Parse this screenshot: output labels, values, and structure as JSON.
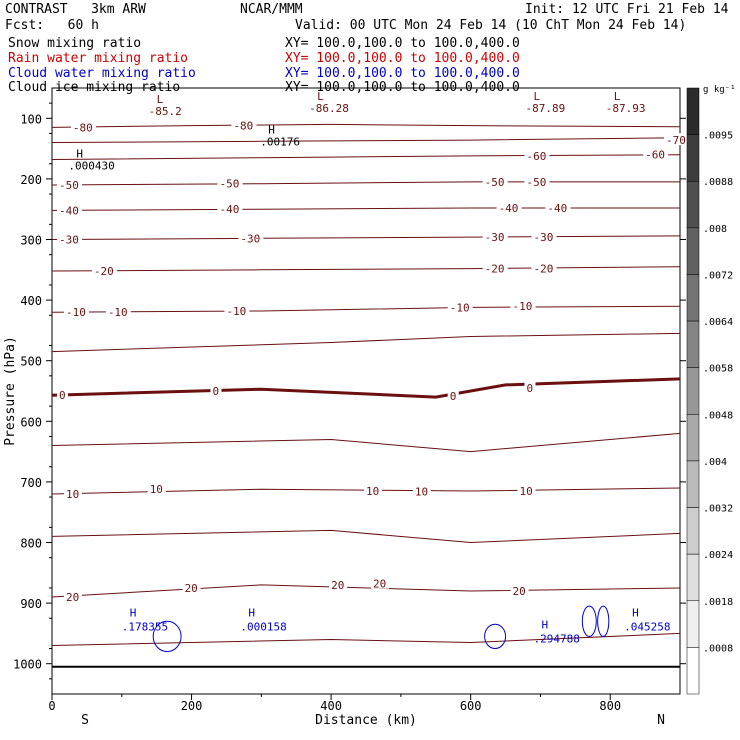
{
  "header": {
    "model": "CONTRAST   3km ARW",
    "org": "NCAR/MMM",
    "init": "Init: 12 UTC Fri 21 Feb 14",
    "fcst": "Fcst:   60 h",
    "valid": "Valid: 00 UTC Mon 24 Feb 14 (10 ChT Mon 24 Feb 14)"
  },
  "fields": [
    {
      "name": "Snow mixing ratio",
      "xy": "XY= 100.0,100.0 to 100.0,400.0",
      "color": "#000000"
    },
    {
      "name": "Rain water mixing ratio",
      "xy": "XY= 100.0,100.0 to 100.0,400.0",
      "color": "#d00000"
    },
    {
      "name": "Cloud water mixing ratio",
      "xy": "XY= 100.0,100.0 to 100.0,400.0",
      "color": "#0000cc"
    },
    {
      "name": "Cloud ice mixing ratio",
      "xy": "XY= 100.0,100.0 to 100.0,400.0",
      "color": "#000000"
    }
  ],
  "colors": {
    "isotherm": "#6b0f0f",
    "cloud": "#0000cc",
    "ground": "#000000"
  },
  "chart_data": {
    "type": "line",
    "xlabel": "Distance (km)",
    "ylabel": "Pressure (hPa)",
    "xlim": [
      0,
      900
    ],
    "ylim": [
      1050,
      50
    ],
    "xticks": [
      "0",
      "200",
      "400",
      "600",
      "800"
    ],
    "yticks": [
      "100",
      "200",
      "300",
      "400",
      "500",
      "600",
      "700",
      "800",
      "900",
      "1000"
    ],
    "x_endpoints": {
      "left": "S",
      "right": "N"
    },
    "isotherms": [
      {
        "t": -80,
        "p": [
          [
            0,
            115
          ],
          [
            200,
            112
          ],
          [
            400,
            110
          ],
          [
            600,
            112
          ],
          [
            900,
            114
          ]
        ]
      },
      {
        "t": -70,
        "p": [
          [
            0,
            140
          ],
          [
            300,
            138
          ],
          [
            600,
            136
          ],
          [
            900,
            132
          ]
        ]
      },
      {
        "t": -60,
        "p": [
          [
            0,
            168
          ],
          [
            300,
            165
          ],
          [
            600,
            162
          ],
          [
            900,
            160
          ]
        ]
      },
      {
        "t": -50,
        "p": [
          [
            0,
            210
          ],
          [
            300,
            208
          ],
          [
            600,
            205
          ],
          [
            900,
            205
          ]
        ]
      },
      {
        "t": -40,
        "p": [
          [
            0,
            252
          ],
          [
            300,
            250
          ],
          [
            600,
            248
          ],
          [
            900,
            248
          ]
        ]
      },
      {
        "t": -30,
        "p": [
          [
            0,
            300
          ],
          [
            300,
            298
          ],
          [
            600,
            296
          ],
          [
            900,
            294
          ]
        ]
      },
      {
        "t": -20,
        "p": [
          [
            0,
            352
          ],
          [
            300,
            350
          ],
          [
            600,
            348
          ],
          [
            900,
            345
          ]
        ]
      },
      {
        "t": -10,
        "p": [
          [
            0,
            420
          ],
          [
            300,
            418
          ],
          [
            600,
            412
          ],
          [
            900,
            410
          ]
        ]
      },
      {
        "t": 0,
        "p": [
          [
            0,
            557
          ],
          [
            300,
            547
          ],
          [
            550,
            560
          ],
          [
            650,
            540
          ],
          [
            900,
            530
          ]
        ]
      },
      {
        "t": 10,
        "p": [
          [
            0,
            720
          ],
          [
            300,
            712
          ],
          [
            600,
            715
          ],
          [
            900,
            710
          ]
        ]
      },
      {
        "t": 20,
        "p": [
          [
            0,
            890
          ],
          [
            300,
            870
          ],
          [
            600,
            880
          ],
          [
            900,
            875
          ]
        ]
      }
    ],
    "extra_contours": [
      {
        "p": [
          [
            0,
            485
          ],
          [
            400,
            470
          ],
          [
            600,
            460
          ],
          [
            900,
            455
          ]
        ]
      },
      {
        "p": [
          [
            0,
            640
          ],
          [
            400,
            630
          ],
          [
            600,
            650
          ],
          [
            900,
            620
          ]
        ]
      },
      {
        "p": [
          [
            0,
            790
          ],
          [
            400,
            780
          ],
          [
            600,
            800
          ],
          [
            900,
            785
          ]
        ]
      },
      {
        "p": [
          [
            0,
            970
          ],
          [
            400,
            960
          ],
          [
            600,
            965
          ],
          [
            900,
            950
          ]
        ]
      }
    ],
    "isotherm_labels": [
      {
        "text": "-80",
        "x": 30,
        "p": 115
      },
      {
        "text": "-80",
        "x": 260,
        "p": 112
      },
      {
        "text": "-70",
        "x": 880,
        "p": 136
      },
      {
        "text": "-60",
        "x": 680,
        "p": 162
      },
      {
        "text": "-60",
        "x": 850,
        "p": 160
      },
      {
        "text": "-50",
        "x": 10,
        "p": 210
      },
      {
        "text": "-50",
        "x": 240,
        "p": 208
      },
      {
        "text": "-50",
        "x": 620,
        "p": 205
      },
      {
        "text": "-50",
        "x": 680,
        "p": 205
      },
      {
        "text": "-40",
        "x": 10,
        "p": 252
      },
      {
        "text": "-40",
        "x": 240,
        "p": 250
      },
      {
        "text": "-40",
        "x": 640,
        "p": 248
      },
      {
        "text": "-40",
        "x": 710,
        "p": 248
      },
      {
        "text": "-30",
        "x": 10,
        "p": 300
      },
      {
        "text": "-30",
        "x": 270,
        "p": 298
      },
      {
        "text": "-30",
        "x": 620,
        "p": 296
      },
      {
        "text": "-30",
        "x": 690,
        "p": 296
      },
      {
        "text": "-20",
        "x": 60,
        "p": 352
      },
      {
        "text": "-20",
        "x": 620,
        "p": 348
      },
      {
        "text": "-20",
        "x": 690,
        "p": 348
      },
      {
        "text": "-10",
        "x": 20,
        "p": 420
      },
      {
        "text": "-10",
        "x": 80,
        "p": 420
      },
      {
        "text": "-10",
        "x": 250,
        "p": 418
      },
      {
        "text": "-10",
        "x": 570,
        "p": 412
      },
      {
        "text": "-10",
        "x": 660,
        "p": 410
      },
      {
        "text": "0",
        "x": 10,
        "p": 557
      },
      {
        "text": "0",
        "x": 230,
        "p": 550
      },
      {
        "text": "0",
        "x": 570,
        "p": 558
      },
      {
        "text": "0",
        "x": 680,
        "p": 545
      },
      {
        "text": "10",
        "x": 20,
        "p": 720
      },
      {
        "text": "10",
        "x": 140,
        "p": 712
      },
      {
        "text": "10",
        "x": 450,
        "p": 715
      },
      {
        "text": "10",
        "x": 520,
        "p": 716
      },
      {
        "text": "10",
        "x": 670,
        "p": 715
      },
      {
        "text": "20",
        "x": 20,
        "p": 890
      },
      {
        "text": "20",
        "x": 190,
        "p": 875
      },
      {
        "text": "20",
        "x": 400,
        "p": 870
      },
      {
        "text": "20",
        "x": 460,
        "p": 868
      },
      {
        "text": "20",
        "x": 660,
        "p": 880
      }
    ],
    "extrema": [
      {
        "kind": "L",
        "value": "-85.2",
        "x": 150,
        "p": 75
      },
      {
        "kind": "L",
        "value": "-86.28",
        "x": 380,
        "p": 70
      },
      {
        "kind": "L",
        "value": "-87.89",
        "x": 690,
        "p": 70
      },
      {
        "kind": "L",
        "value": "-87.93",
        "x": 805,
        "p": 70
      },
      {
        "kind": "H",
        "value": ".00176",
        "x": 310,
        "p": 125
      },
      {
        "kind": "H",
        "value": ".000430",
        "x": 35,
        "p": 165
      }
    ],
    "cloud_extrema": [
      {
        "kind": "H",
        "value": ".178355",
        "x": 100,
        "p": 935
      },
      {
        "kind": "H",
        "value": ".000158",
        "x": 270,
        "p": 935
      },
      {
        "kind": "H",
        "value": ".294788",
        "x": 690,
        "p": 955
      },
      {
        "kind": "H",
        "value": ".045258",
        "x": 820,
        "p": 935
      }
    ],
    "cloud_blobs": [
      {
        "cx": 165,
        "p": 955,
        "rx": 20,
        "rp": 25
      },
      {
        "cx": 635,
        "p": 955,
        "rx": 15,
        "rp": 20
      },
      {
        "cx": 770,
        "p": 930,
        "rx": 10,
        "rp": 25
      },
      {
        "cx": 790,
        "p": 930,
        "rx": 8,
        "rp": 25
      }
    ],
    "ground_p": 1005,
    "colorbar": {
      "unit": "g kg⁻¹",
      "labels": [
        ".0095",
        ".0088",
        ".008",
        ".0072",
        ".0064",
        ".0058",
        ".0048",
        ".004",
        ".0032",
        ".0024",
        ".0018",
        ".0008"
      ],
      "shades": [
        "#2b2b2b",
        "#3d3d3d",
        "#4f4f4f",
        "#616161",
        "#737373",
        "#858585",
        "#979797",
        "#a9a9a9",
        "#bbbbbb",
        "#cdcdcd",
        "#dfdfdf",
        "#efefef",
        "#ffffff"
      ]
    }
  }
}
